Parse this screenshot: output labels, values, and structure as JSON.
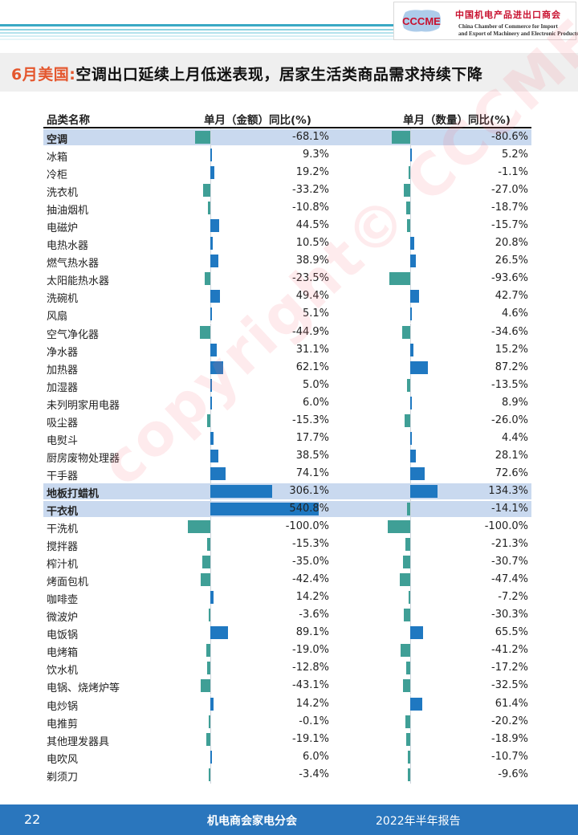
{
  "header": {
    "logo_text": "CCCME",
    "org_cn": "中国机电产品进出口商会",
    "org_en_line1": "China Chamber of Commerce for Import",
    "org_en_line2": "and Export of Machinery and Electronic Products"
  },
  "title": {
    "prefix": "6月美国:",
    "text": "空调出口延续上月低迷表现，居家生活类商品需求持续下降"
  },
  "colors": {
    "positive_bar": "#1f78c1",
    "negative_bar": "#3f9f96",
    "highlight_row": "#c9d9ef",
    "accent_title": "#e4572e",
    "footer_band": "#2a76bd"
  },
  "watermark": "copyright© CCCME",
  "chart_data": {
    "type": "table",
    "columns": [
      "品类名称",
      "单月（金额）同比(%)",
      "单月（数量）同比(%)"
    ],
    "value_unit": "%",
    "highlighted_rows": [
      "空调",
      "地板打蜡机",
      "干衣机"
    ],
    "rows": [
      {
        "name": "空调",
        "amount": -68.1,
        "quantity": -80.6,
        "amount_label": "-68.1%",
        "quantity_label": "-80.6%"
      },
      {
        "name": "冰箱",
        "amount": 9.3,
        "quantity": 5.2,
        "amount_label": "9.3%",
        "quantity_label": "5.2%"
      },
      {
        "name": "冷柜",
        "amount": 19.2,
        "quantity": -1.1,
        "amount_label": "19.2%",
        "quantity_label": "-1.1%"
      },
      {
        "name": "洗衣机",
        "amount": -33.2,
        "quantity": -27.0,
        "amount_label": "-33.2%",
        "quantity_label": "-27.0%"
      },
      {
        "name": "抽油烟机",
        "amount": -10.8,
        "quantity": -18.7,
        "amount_label": "-10.8%",
        "quantity_label": "-18.7%"
      },
      {
        "name": "电磁炉",
        "amount": 44.5,
        "quantity": -15.7,
        "amount_label": "44.5%",
        "quantity_label": "-15.7%"
      },
      {
        "name": "电热水器",
        "amount": 10.5,
        "quantity": 20.8,
        "amount_label": "10.5%",
        "quantity_label": "20.8%"
      },
      {
        "name": "燃气热水器",
        "amount": 38.9,
        "quantity": 26.5,
        "amount_label": "38.9%",
        "quantity_label": "26.5%"
      },
      {
        "name": "太阳能热水器",
        "amount": -23.5,
        "quantity": -93.6,
        "amount_label": "-23.5%",
        "quantity_label": "-93.6%"
      },
      {
        "name": "洗碗机",
        "amount": 49.4,
        "quantity": 42.7,
        "amount_label": "49.4%",
        "quantity_label": "42.7%"
      },
      {
        "name": "风扇",
        "amount": 5.1,
        "quantity": 4.6,
        "amount_label": "5.1%",
        "quantity_label": "4.6%"
      },
      {
        "name": "空气净化器",
        "amount": -44.9,
        "quantity": -34.6,
        "amount_label": "-44.9%",
        "quantity_label": "-34.6%"
      },
      {
        "name": "净水器",
        "amount": 31.1,
        "quantity": 15.2,
        "amount_label": "31.1%",
        "quantity_label": "15.2%"
      },
      {
        "name": "加热器",
        "amount": 62.1,
        "quantity": 87.2,
        "amount_label": "62.1%",
        "quantity_label": "87.2%"
      },
      {
        "name": "加湿器",
        "amount": 5.0,
        "quantity": -13.5,
        "amount_label": "5.0%",
        "quantity_label": "-13.5%"
      },
      {
        "name": "未列明家用电器",
        "amount": 6.0,
        "quantity": 8.9,
        "amount_label": "6.0%",
        "quantity_label": "8.9%"
      },
      {
        "name": "吸尘器",
        "amount": -15.3,
        "quantity": -26.0,
        "amount_label": "-15.3%",
        "quantity_label": "-26.0%"
      },
      {
        "name": "电熨斗",
        "amount": 17.7,
        "quantity": 4.4,
        "amount_label": "17.7%",
        "quantity_label": "4.4%"
      },
      {
        "name": "厨房废物处理器",
        "amount": 38.5,
        "quantity": 28.1,
        "amount_label": "38.5%",
        "quantity_label": "28.1%"
      },
      {
        "name": "干手器",
        "amount": 74.1,
        "quantity": 72.6,
        "amount_label": "74.1%",
        "quantity_label": "72.6%"
      },
      {
        "name": "地板打蜡机",
        "amount": 306.1,
        "quantity": 134.3,
        "amount_label": "306.1%",
        "quantity_label": "134.3%"
      },
      {
        "name": "干衣机",
        "amount": 540.8,
        "quantity": -14.1,
        "amount_label": "540.8%",
        "quantity_label": "-14.1%"
      },
      {
        "name": "干洗机",
        "amount": -100.0,
        "quantity": -100.0,
        "amount_label": "-100.0%",
        "quantity_label": "-100.0%"
      },
      {
        "name": "搅拌器",
        "amount": -15.3,
        "quantity": -21.3,
        "amount_label": "-15.3%",
        "quantity_label": "-21.3%"
      },
      {
        "name": "榨汁机",
        "amount": -35.0,
        "quantity": -30.7,
        "amount_label": "-35.0%",
        "quantity_label": "-30.7%"
      },
      {
        "name": "烤面包机",
        "amount": -42.4,
        "quantity": -47.4,
        "amount_label": "-42.4%",
        "quantity_label": "-47.4%"
      },
      {
        "name": "咖啡壶",
        "amount": 14.2,
        "quantity": -7.2,
        "amount_label": "14.2%",
        "quantity_label": "-7.2%"
      },
      {
        "name": "微波炉",
        "amount": -3.6,
        "quantity": -30.3,
        "amount_label": "-3.6%",
        "quantity_label": "-30.3%"
      },
      {
        "name": "电饭锅",
        "amount": 89.1,
        "quantity": 65.5,
        "amount_label": "89.1%",
        "quantity_label": "65.5%"
      },
      {
        "name": "电烤箱",
        "amount": -19.0,
        "quantity": -41.2,
        "amount_label": "-19.0%",
        "quantity_label": "-41.2%"
      },
      {
        "name": "饮水机",
        "amount": -12.8,
        "quantity": -17.2,
        "amount_label": "-12.8%",
        "quantity_label": "-17.2%"
      },
      {
        "name": "电锅、烧烤炉等",
        "amount": -43.1,
        "quantity": -32.5,
        "amount_label": "-43.1%",
        "quantity_label": "-32.5%"
      },
      {
        "name": "电炒锅",
        "amount": 14.2,
        "quantity": 61.4,
        "amount_label": "14.2%",
        "quantity_label": "61.4%"
      },
      {
        "name": "电推剪",
        "amount": -0.1,
        "quantity": -20.2,
        "amount_label": "-0.1%",
        "quantity_label": "-20.2%"
      },
      {
        "name": "其他理发器具",
        "amount": -19.1,
        "quantity": -18.9,
        "amount_label": "-19.1%",
        "quantity_label": "-18.9%"
      },
      {
        "name": "电吹风",
        "amount": 6.0,
        "quantity": -10.7,
        "amount_label": "6.0%",
        "quantity_label": "-10.7%"
      },
      {
        "name": "剃须刀",
        "amount": -3.4,
        "quantity": -9.6,
        "amount_label": "-3.4%",
        "quantity_label": "-9.6%"
      }
    ]
  },
  "footer": {
    "page_number": "22",
    "org": "机电商会家电分会",
    "report": "2022年半年报告"
  }
}
